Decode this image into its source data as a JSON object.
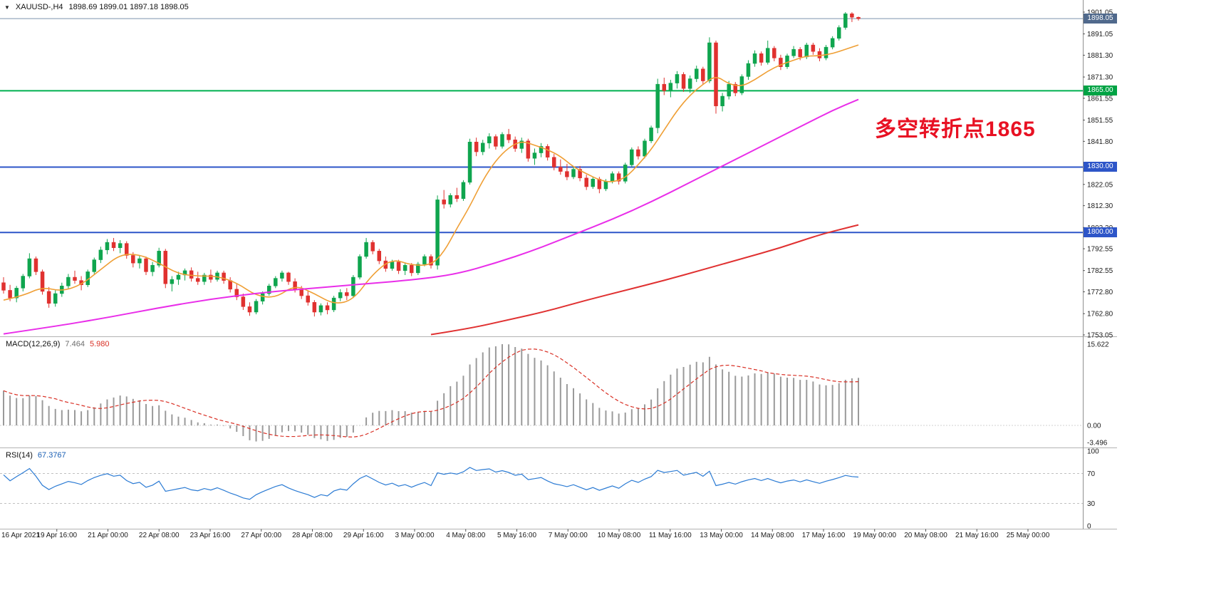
{
  "window": {
    "collapse_icon": "▼",
    "symbol_title": "XAUUSD-,H4",
    "ohlc_text": "1898.69 1899.01 1897.18 1898.05"
  },
  "chart_data": {
    "type": "candlestick",
    "symbol": "XAUUSD-",
    "timeframe": "H4",
    "title": "XAUUSD-,H4 1898.69 1899.01 1897.18 1898.05",
    "last_candle": {
      "open": 1898.69,
      "high": 1899.01,
      "low": 1897.18,
      "close": 1898.05
    },
    "price_axis": {
      "min": 1753.05,
      "max": 1901.05,
      "ticks": [
        "1901.05",
        "1891.05",
        "1881.30",
        "1871.30",
        "1861.55",
        "1851.55",
        "1841.80",
        "1822.05",
        "1812.30",
        "1802.30",
        "1792.55",
        "1782.55",
        "1772.80",
        "1762.80",
        "1753.05"
      ]
    },
    "time_labels": [
      "16 Apr 2021",
      "19 Apr 16:00",
      "21 Apr 00:00",
      "22 Apr 08:00",
      "23 Apr 16:00",
      "27 Apr 00:00",
      "28 Apr 08:00",
      "29 Apr 16:00",
      "3 May 00:00",
      "4 May 08:00",
      "5 May 16:00",
      "7 May 00:00",
      "10 May 08:00",
      "11 May 16:00",
      "13 May 00:00",
      "14 May 08:00",
      "17 May 16:00",
      "19 May 00:00",
      "20 May 08:00",
      "21 May 16:00",
      "25 May 00:00"
    ],
    "candles_ohlc": [
      [
        1777,
        1779.5,
        1772,
        1773.5
      ],
      [
        1773.5,
        1776,
        1768.5,
        1770
      ],
      [
        1770,
        1775.5,
        1768,
        1774.5
      ],
      [
        1774.5,
        1781,
        1773,
        1780
      ],
      [
        1780,
        1790.5,
        1779,
        1788
      ],
      [
        1788,
        1789,
        1780.5,
        1782
      ],
      [
        1782,
        1783,
        1771.5,
        1773
      ],
      [
        1773,
        1775,
        1765.5,
        1767.5
      ],
      [
        1767.5,
        1773.5,
        1766,
        1772
      ],
      [
        1772,
        1777,
        1770.5,
        1775.5
      ],
      [
        1775.5,
        1781,
        1774,
        1779.5
      ],
      [
        1779.5,
        1782.5,
        1776.5,
        1778
      ],
      [
        1778,
        1780,
        1773.5,
        1776
      ],
      [
        1776,
        1783,
        1775,
        1782
      ],
      [
        1782,
        1788.5,
        1781,
        1787.5
      ],
      [
        1787.5,
        1793.5,
        1786,
        1792
      ],
      [
        1792,
        1797,
        1790,
        1795.5
      ],
      [
        1795.5,
        1797.5,
        1791.5,
        1793
      ],
      [
        1793,
        1796.5,
        1790.5,
        1795
      ],
      [
        1795,
        1796,
        1788,
        1789.5
      ],
      [
        1789.5,
        1791,
        1784,
        1786
      ],
      [
        1786,
        1789.5,
        1783.5,
        1788
      ],
      [
        1788,
        1789,
        1780.5,
        1782
      ],
      [
        1782,
        1786.5,
        1780,
        1785
      ],
      [
        1785,
        1793,
        1784,
        1791.5
      ],
      [
        1791.5,
        1792.5,
        1774.5,
        1776.5
      ],
      [
        1776.5,
        1780,
        1773,
        1778.5
      ],
      [
        1778.5,
        1782,
        1776,
        1780.5
      ],
      [
        1780.5,
        1783.5,
        1778,
        1782.5
      ],
      [
        1782.5,
        1784,
        1777.5,
        1779
      ],
      [
        1779,
        1782,
        1776,
        1777.5
      ],
      [
        1777.5,
        1781.5,
        1776,
        1780.5
      ],
      [
        1780.5,
        1783,
        1777,
        1778.5
      ],
      [
        1778.5,
        1782.5,
        1777.5,
        1781.5
      ],
      [
        1781.5,
        1782.5,
        1776.5,
        1778
      ],
      [
        1778,
        1779.5,
        1772.5,
        1774
      ],
      [
        1774,
        1776.5,
        1769,
        1770.5
      ],
      [
        1770.5,
        1772,
        1764.5,
        1766
      ],
      [
        1766,
        1768,
        1761.8,
        1763.5
      ],
      [
        1763.5,
        1769.5,
        1762.5,
        1768.5
      ],
      [
        1768.5,
        1773,
        1767,
        1772
      ],
      [
        1772,
        1776.5,
        1771,
        1775.5
      ],
      [
        1775.5,
        1780,
        1774.5,
        1779
      ],
      [
        1779,
        1782.5,
        1777.5,
        1781.5
      ],
      [
        1781.5,
        1782,
        1776,
        1777.5
      ],
      [
        1777.5,
        1779,
        1772.5,
        1774
      ],
      [
        1774,
        1775.5,
        1769.5,
        1771
      ],
      [
        1771,
        1773.5,
        1766.5,
        1768
      ],
      [
        1768,
        1769,
        1761.5,
        1763.5
      ],
      [
        1763.5,
        1767.5,
        1762,
        1766.5
      ],
      [
        1766.5,
        1768,
        1762.5,
        1764.5
      ],
      [
        1764.5,
        1771,
        1763.5,
        1770
      ],
      [
        1770,
        1774,
        1768.5,
        1772.5
      ],
      [
        1772.5,
        1774.5,
        1769,
        1771
      ],
      [
        1771,
        1780.5,
        1770,
        1779.5
      ],
      [
        1779.5,
        1790,
        1778.5,
        1789
      ],
      [
        1789,
        1797.5,
        1788,
        1795.5
      ],
      [
        1795.5,
        1796.5,
        1790,
        1791.5
      ],
      [
        1791.5,
        1792.5,
        1785.5,
        1787
      ],
      [
        1787,
        1789,
        1782,
        1783.5
      ],
      [
        1783.5,
        1787.5,
        1782.5,
        1786.5
      ],
      [
        1786.5,
        1787.5,
        1781,
        1782.5
      ],
      [
        1782.5,
        1786,
        1780.5,
        1785
      ],
      [
        1785,
        1786,
        1780,
        1781.5
      ],
      [
        1781.5,
        1786.5,
        1780.5,
        1785.5
      ],
      [
        1785.5,
        1790,
        1784.5,
        1789
      ],
      [
        1789,
        1790,
        1783.5,
        1785
      ],
      [
        1785,
        1817,
        1783,
        1815
      ],
      [
        1815,
        1819.5,
        1811,
        1813
      ],
      [
        1813,
        1818,
        1811.5,
        1817
      ],
      [
        1817,
        1820.5,
        1814,
        1815.5
      ],
      [
        1815.5,
        1824,
        1814.5,
        1823
      ],
      [
        1823,
        1843,
        1822,
        1841.5
      ],
      [
        1841.5,
        1843.5,
        1835,
        1837
      ],
      [
        1837,
        1842.5,
        1835.5,
        1841
      ],
      [
        1841,
        1845.5,
        1838.5,
        1844
      ],
      [
        1844,
        1845,
        1838,
        1839.5
      ],
      [
        1839.5,
        1846,
        1838.5,
        1845
      ],
      [
        1845,
        1847.5,
        1841,
        1842.5
      ],
      [
        1842.5,
        1844,
        1837,
        1838.5
      ],
      [
        1838.5,
        1843.5,
        1836.5,
        1842
      ],
      [
        1842,
        1843,
        1832.5,
        1834
      ],
      [
        1834,
        1838.5,
        1831,
        1836.5
      ],
      [
        1836.5,
        1841,
        1834.5,
        1839.5
      ],
      [
        1839.5,
        1840.5,
        1833,
        1834.5
      ],
      [
        1834.5,
        1836,
        1828.5,
        1830
      ],
      [
        1830,
        1833.5,
        1826.5,
        1828
      ],
      [
        1828,
        1831.5,
        1824,
        1825.5
      ],
      [
        1825.5,
        1830,
        1824.5,
        1829
      ],
      [
        1829,
        1830.5,
        1823.5,
        1825
      ],
      [
        1825,
        1826.5,
        1819.5,
        1821
      ],
      [
        1821,
        1825.5,
        1820,
        1824.5
      ],
      [
        1824.5,
        1825.5,
        1818,
        1820
      ],
      [
        1820,
        1824.5,
        1819,
        1823.5
      ],
      [
        1823.5,
        1828,
        1822.5,
        1827
      ],
      [
        1827,
        1828,
        1822,
        1823.5
      ],
      [
        1823.5,
        1832,
        1822.5,
        1831
      ],
      [
        1831,
        1839,
        1830,
        1838
      ],
      [
        1838,
        1839.5,
        1833.5,
        1835
      ],
      [
        1835,
        1843,
        1834,
        1842
      ],
      [
        1842,
        1849,
        1841,
        1848
      ],
      [
        1848,
        1870.5,
        1845.5,
        1868
      ],
      [
        1868,
        1871,
        1863,
        1865
      ],
      [
        1865,
        1870,
        1862,
        1868.5
      ],
      [
        1868.5,
        1874,
        1866,
        1872.5
      ],
      [
        1872.5,
        1873.5,
        1864.5,
        1866
      ],
      [
        1866,
        1872,
        1864,
        1870.5
      ],
      [
        1870.5,
        1876.5,
        1869,
        1875
      ],
      [
        1875,
        1876,
        1868,
        1869.5
      ],
      [
        1869.5,
        1889.5,
        1868.5,
        1887
      ],
      [
        1887,
        1888,
        1854.5,
        1858
      ],
      [
        1858,
        1864,
        1855.5,
        1862.5
      ],
      [
        1862.5,
        1869.5,
        1861,
        1868
      ],
      [
        1868,
        1869,
        1862.5,
        1864
      ],
      [
        1864,
        1872.5,
        1863,
        1871.5
      ],
      [
        1871.5,
        1879,
        1870,
        1877.5
      ],
      [
        1877.5,
        1883.5,
        1876,
        1882
      ],
      [
        1882,
        1883,
        1876.5,
        1878
      ],
      [
        1878,
        1888,
        1877,
        1884.5
      ],
      [
        1884.5,
        1885.5,
        1878.5,
        1880
      ],
      [
        1880,
        1881.5,
        1874.5,
        1876
      ],
      [
        1876,
        1882,
        1875,
        1881
      ],
      [
        1881,
        1885.5,
        1880,
        1884
      ],
      [
        1884,
        1885,
        1879,
        1880.5
      ],
      [
        1880.5,
        1887,
        1879.5,
        1886
      ],
      [
        1886,
        1887,
        1881.5,
        1883
      ],
      [
        1883,
        1884.5,
        1878.5,
        1880
      ],
      [
        1880,
        1886,
        1879,
        1885
      ],
      [
        1885,
        1890,
        1884,
        1889
      ],
      [
        1889,
        1895,
        1888,
        1894
      ],
      [
        1894,
        1901.05,
        1893,
        1900.3
      ],
      [
        1900.3,
        1901,
        1896.5,
        1898.7
      ],
      [
        1898.69,
        1899.01,
        1897.18,
        1898.05
      ]
    ],
    "style": {
      "up_color": "#0fa54e",
      "down_color": "#e0312f"
    },
    "overlays": [
      {
        "name": "ma-fast",
        "color": "#ef9f35",
        "width": 1.6,
        "points": [
          [
            0,
            1769
          ],
          [
            3,
            1771
          ],
          [
            6,
            1775
          ],
          [
            9,
            1773
          ],
          [
            12,
            1776
          ],
          [
            15,
            1783
          ],
          [
            18,
            1790
          ],
          [
            21,
            1790
          ],
          [
            24,
            1786
          ],
          [
            27,
            1781
          ],
          [
            30,
            1780
          ],
          [
            33,
            1780
          ],
          [
            36,
            1777
          ],
          [
            39,
            1771
          ],
          [
            42,
            1770
          ],
          [
            45,
            1776
          ],
          [
            48,
            1772
          ],
          [
            51,
            1767
          ],
          [
            54,
            1769
          ],
          [
            57,
            1781
          ],
          [
            60,
            1788
          ],
          [
            63,
            1785
          ],
          [
            66,
            1785
          ],
          [
            68,
            1791
          ],
          [
            70,
            1802
          ],
          [
            72,
            1812
          ],
          [
            74,
            1824
          ],
          [
            76,
            1833
          ],
          [
            78,
            1839
          ],
          [
            80,
            1842
          ],
          [
            82,
            1840
          ],
          [
            84,
            1838
          ],
          [
            86,
            1835
          ],
          [
            88,
            1830
          ],
          [
            90,
            1827
          ],
          [
            92,
            1824
          ],
          [
            94,
            1823
          ],
          [
            96,
            1825
          ],
          [
            98,
            1831
          ],
          [
            100,
            1838
          ],
          [
            102,
            1847
          ],
          [
            104,
            1856
          ],
          [
            106,
            1863
          ],
          [
            108,
            1868
          ],
          [
            110,
            1872
          ],
          [
            112,
            1868
          ],
          [
            114,
            1867
          ],
          [
            116,
            1870
          ],
          [
            118,
            1874
          ],
          [
            120,
            1877
          ],
          [
            122,
            1879
          ],
          [
            124,
            1881
          ],
          [
            126,
            1881
          ],
          [
            128,
            1882
          ],
          [
            130,
            1884
          ],
          [
            132,
            1886
          ]
        ]
      },
      {
        "name": "ma-mid",
        "color": "#e92ee9",
        "width": 2,
        "points": [
          [
            0,
            1753.5
          ],
          [
            8,
            1757
          ],
          [
            16,
            1761
          ],
          [
            24,
            1765.5
          ],
          [
            32,
            1769.5
          ],
          [
            40,
            1772.5
          ],
          [
            48,
            1774.5
          ],
          [
            56,
            1776.5
          ],
          [
            64,
            1778.5
          ],
          [
            70,
            1781
          ],
          [
            76,
            1786
          ],
          [
            82,
            1792
          ],
          [
            88,
            1799
          ],
          [
            94,
            1806
          ],
          [
            100,
            1814
          ],
          [
            106,
            1823
          ],
          [
            112,
            1832
          ],
          [
            118,
            1841
          ],
          [
            124,
            1850
          ],
          [
            128,
            1856
          ],
          [
            132,
            1861
          ]
        ]
      },
      {
        "name": "ma-slow",
        "color": "#e03131",
        "width": 2,
        "points": [
          [
            66,
            1753.2
          ],
          [
            72,
            1756
          ],
          [
            78,
            1760
          ],
          [
            84,
            1764
          ],
          [
            90,
            1769
          ],
          [
            96,
            1773.5
          ],
          [
            102,
            1778
          ],
          [
            108,
            1783
          ],
          [
            114,
            1788
          ],
          [
            120,
            1793
          ],
          [
            126,
            1799
          ],
          [
            130,
            1802
          ],
          [
            132,
            1803.5
          ]
        ]
      }
    ],
    "hlines": [
      {
        "price": 1865.0,
        "label": "1865.00",
        "color": "#00b050",
        "tag_color": "#00a344"
      },
      {
        "price": 1830.0,
        "label": "1830.00",
        "color": "#2d55c8",
        "tag_color": "#2d55c8"
      },
      {
        "price": 1800.0,
        "label": "1800.00",
        "color": "#2d55c8",
        "tag_color": "#2d55c8"
      }
    ],
    "bid_line": {
      "price": 1898.05,
      "label": "1898.05",
      "color": "#7d95ad",
      "tag_color": "#50698c"
    },
    "annotation": {
      "text": "多空转折点1865",
      "color": "#e81123"
    },
    "indicators": {
      "macd": {
        "label": "MACD(12,26,9)",
        "main_value": "7.464",
        "signal_value": "5.980",
        "axis_labels": [
          "15.622",
          "0.00",
          "-3.496"
        ],
        "histogram_color": "#9a9a9a",
        "signal_color": "#d93025"
      },
      "rsi": {
        "label": "RSI(14)",
        "value": "67.3767",
        "levels": [
          100,
          70,
          30,
          0
        ],
        "line_color": "#2b7bd4"
      }
    }
  }
}
